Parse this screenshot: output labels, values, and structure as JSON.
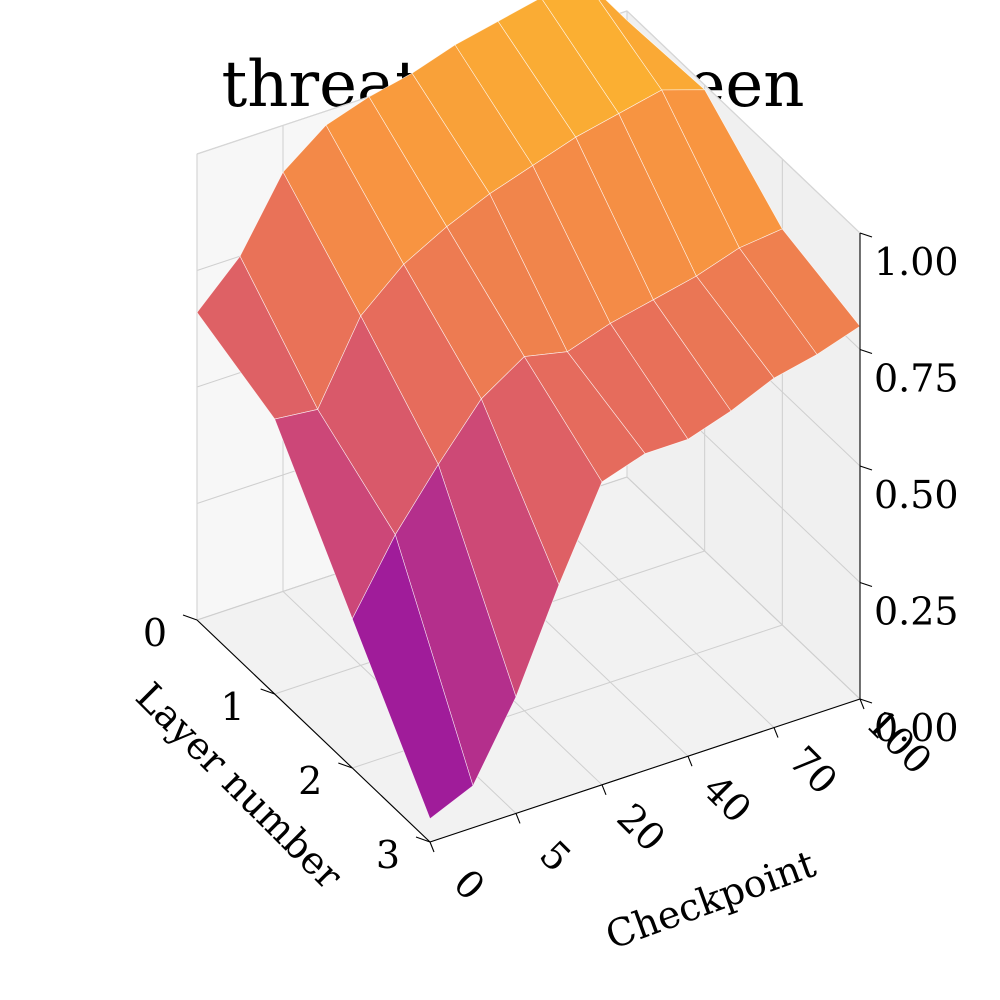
{
  "chart_data": {
    "type": "surface",
    "title": "threat_opp_queen",
    "xlabel": "Checkpoint",
    "ylabel": "Layer number",
    "zlabel": "",
    "x_ticks": [
      "0",
      "5",
      "20",
      "40",
      "70",
      "100"
    ],
    "y_ticks": [
      "0",
      "1",
      "2",
      "3"
    ],
    "z_ticks": [
      "0.00",
      "0.25",
      "0.50",
      "0.75",
      "1.00"
    ],
    "zlim": [
      0,
      1
    ],
    "colormap": "plasma",
    "grid": true,
    "z": [
      [
        0.66,
        0.75,
        0.9,
        0.97,
        1.0,
        1.02,
        1.05,
        1.07,
        1.09,
        1.1,
        0.98
      ],
      [
        0.59,
        0.58,
        0.75,
        0.83,
        0.88,
        0.92,
        0.95,
        0.98,
        1.0,
        1.02,
        0.99
      ],
      [
        0.32,
        0.47,
        0.59,
        0.7,
        0.76,
        0.74,
        0.77,
        0.79,
        0.81,
        0.84,
        0.85
      ],
      [
        0.05,
        0.09,
        0.25,
        0.46,
        0.65,
        0.68,
        0.68,
        0.71,
        0.75,
        0.77,
        0.8
      ]
    ]
  }
}
